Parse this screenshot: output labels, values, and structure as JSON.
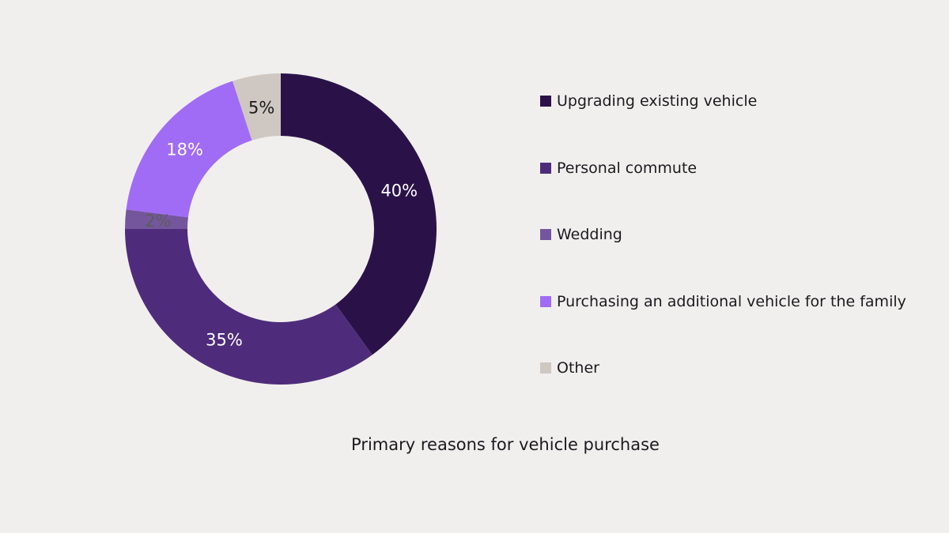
{
  "chart_data": {
    "type": "pie",
    "variant": "donut",
    "title": "Primary reasons for vehicle purchase",
    "categories": [
      "Upgrading existing vehicle",
      "Personal commute",
      "Wedding",
      "Purchasing an additional vehicle for the family",
      "Other"
    ],
    "values": [
      40,
      35,
      2,
      18,
      5
    ],
    "data_labels": [
      "40%",
      "35%",
      "2%",
      "18%",
      "5%"
    ],
    "colors": [
      "#2a1249",
      "#4e2c7b",
      "#74569d",
      "#a06cf5",
      "#cfc7c1"
    ],
    "label_colors": [
      "#ffffff",
      "#ffffff",
      "#5c5c5c",
      "#ffffff",
      "#1c1a1e"
    ],
    "legend_position": "right",
    "start_angle_deg": 0,
    "direction": "clockwise"
  }
}
